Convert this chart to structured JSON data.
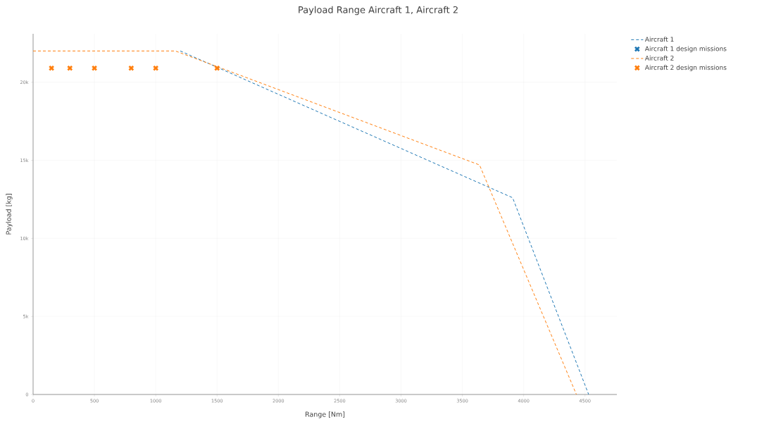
{
  "chart_data": {
    "type": "line",
    "title": "Payload Range Aircraft 1, Aircraft 2",
    "xlabel": "Range [Nm]",
    "ylabel": "Payload [kg]",
    "xlim": [
      0,
      4760
    ],
    "ylim": [
      0,
      23100
    ],
    "xticks": [
      0,
      500,
      1000,
      1500,
      2000,
      2500,
      3000,
      3500,
      4000,
      4500
    ],
    "yticks": [
      0,
      {
        "value": 5000,
        "label": "5k"
      },
      {
        "value": 10000,
        "label": "10k"
      },
      {
        "value": 15000,
        "label": "15k"
      },
      {
        "value": 20000,
        "label": "20k"
      }
    ],
    "grid": true,
    "legend": "top right",
    "series": [
      {
        "name": "Aircraft 1",
        "color": "#1f77b4",
        "line_style": "dashed",
        "x": [
          1200,
          3910,
          4530
        ],
        "values": [
          22000,
          12600,
          0
        ]
      },
      {
        "name": "Aircraft 1 design missions",
        "type": "scatter",
        "color": "#1f77b4",
        "marker": "cross",
        "values": [
          null,
          null,
          null,
          null,
          null,
          null
        ]
      },
      {
        "name": "Aircraft 2",
        "color": "#ff7f0e",
        "line_style": "dashed",
        "x": [
          0,
          1160,
          3640,
          4430
        ],
        "values": [
          22000,
          22000,
          14700,
          0
        ]
      },
      {
        "name": "Aircraft 2 design missions",
        "type": "scatter",
        "color": "#ff7f0e",
        "marker": "cross",
        "x": [
          150,
          300,
          500,
          800,
          1000,
          1500
        ],
        "values": [
          20900,
          20900,
          20900,
          20900,
          20900,
          20900
        ]
      }
    ]
  }
}
